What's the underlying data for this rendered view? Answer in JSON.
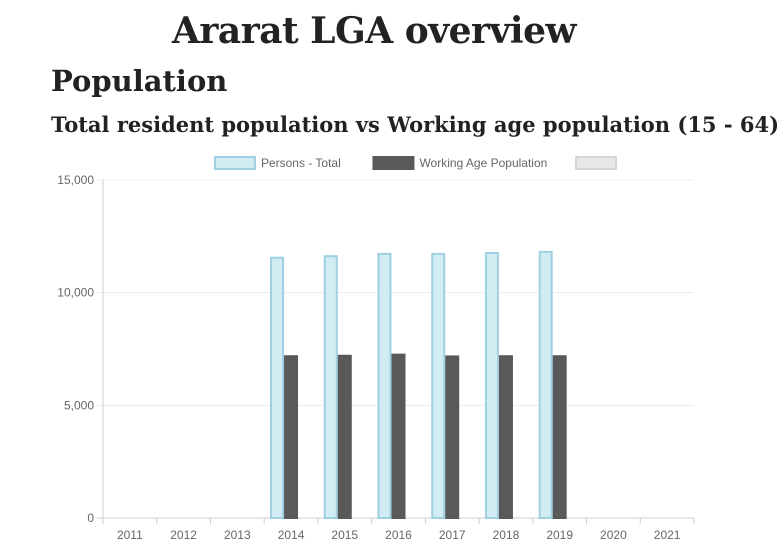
{
  "page": {
    "title": "Ararat LGA overview",
    "section": "Population",
    "chart_title": "Total resident population vs Working age population (15 - 64)"
  },
  "chart_data": {
    "type": "bar",
    "title": "Total resident population vs Working age population (15 - 64)",
    "categories": [
      "2011",
      "2012",
      "2013",
      "2014",
      "2015",
      "2016",
      "2017",
      "2018",
      "2019",
      "2020",
      "2021"
    ],
    "series": [
      {
        "name": "Persons - Total",
        "values": [
          null,
          null,
          null,
          11550,
          11620,
          11720,
          11720,
          11760,
          11810,
          null,
          null
        ],
        "fill": "#d2ecf4",
        "stroke": "#9fd0e2"
      },
      {
        "name": "Working Age Population",
        "values": [
          null,
          null,
          null,
          7180,
          7200,
          7250,
          7170,
          7180,
          7180,
          null,
          null
        ],
        "fill": "#595959",
        "stroke": "#595959"
      },
      {
        "name": "",
        "values": [
          null,
          null,
          null,
          null,
          null,
          null,
          null,
          null,
          null,
          null,
          null
        ],
        "fill": "#e8e8e8",
        "stroke": "#d6d6d6"
      }
    ],
    "yticks": [
      "0",
      "5,000",
      "10,000",
      "15,000"
    ],
    "ylim": [
      0,
      15000
    ],
    "grid": true,
    "legend": "top-center"
  }
}
